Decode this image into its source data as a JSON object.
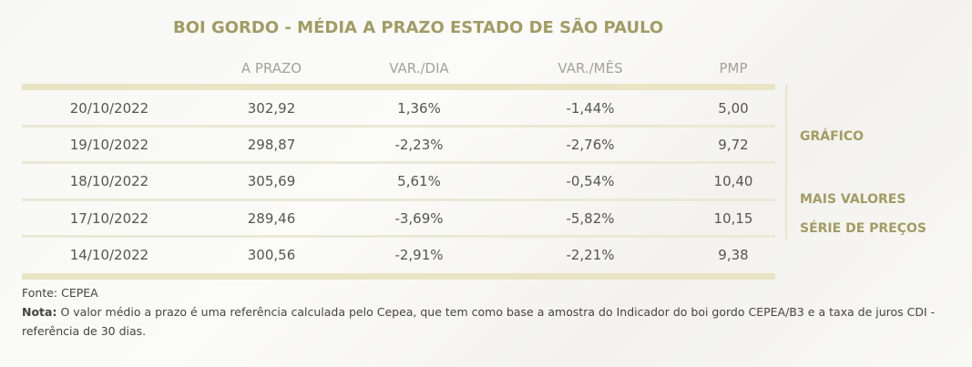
{
  "title": "BOI GORDO - MÉDIA A PRAZO ESTADO DE SÃO PAULO",
  "table": {
    "headers": [
      "A PRAZO",
      "VAR./DIA",
      "VAR./MÊS",
      "PMP"
    ],
    "rows": [
      [
        "20/10/2022",
        "302,92",
        "1,36%",
        "-1,44%",
        "5,00"
      ],
      [
        "19/10/2022",
        "298,87",
        "-2,23%",
        "-2,76%",
        "9,72"
      ],
      [
        "18/10/2022",
        "305,69",
        "5,61%",
        "-0,54%",
        "10,40"
      ],
      [
        "17/10/2022",
        "289,46",
        "-3,69%",
        "-5,82%",
        "10,15"
      ],
      [
        "14/10/2022",
        "300,56",
        "-2,91%",
        "-2,21%",
        "9,38"
      ]
    ]
  },
  "links": [
    "GRÁFICO",
    "MAIS VALORES",
    "SÉRIE DE PREÇOS"
  ],
  "footer": {
    "source": "Fonte: CEPEA",
    "note_label": "Nota:",
    "note": "O valor médio a prazo é uma referência calculada pelo Cepea, que tem como base a amostra do Indicador do boi gordo CEPEA/B3 e a taxa de juros CDI - referência de 30 dias."
  }
}
